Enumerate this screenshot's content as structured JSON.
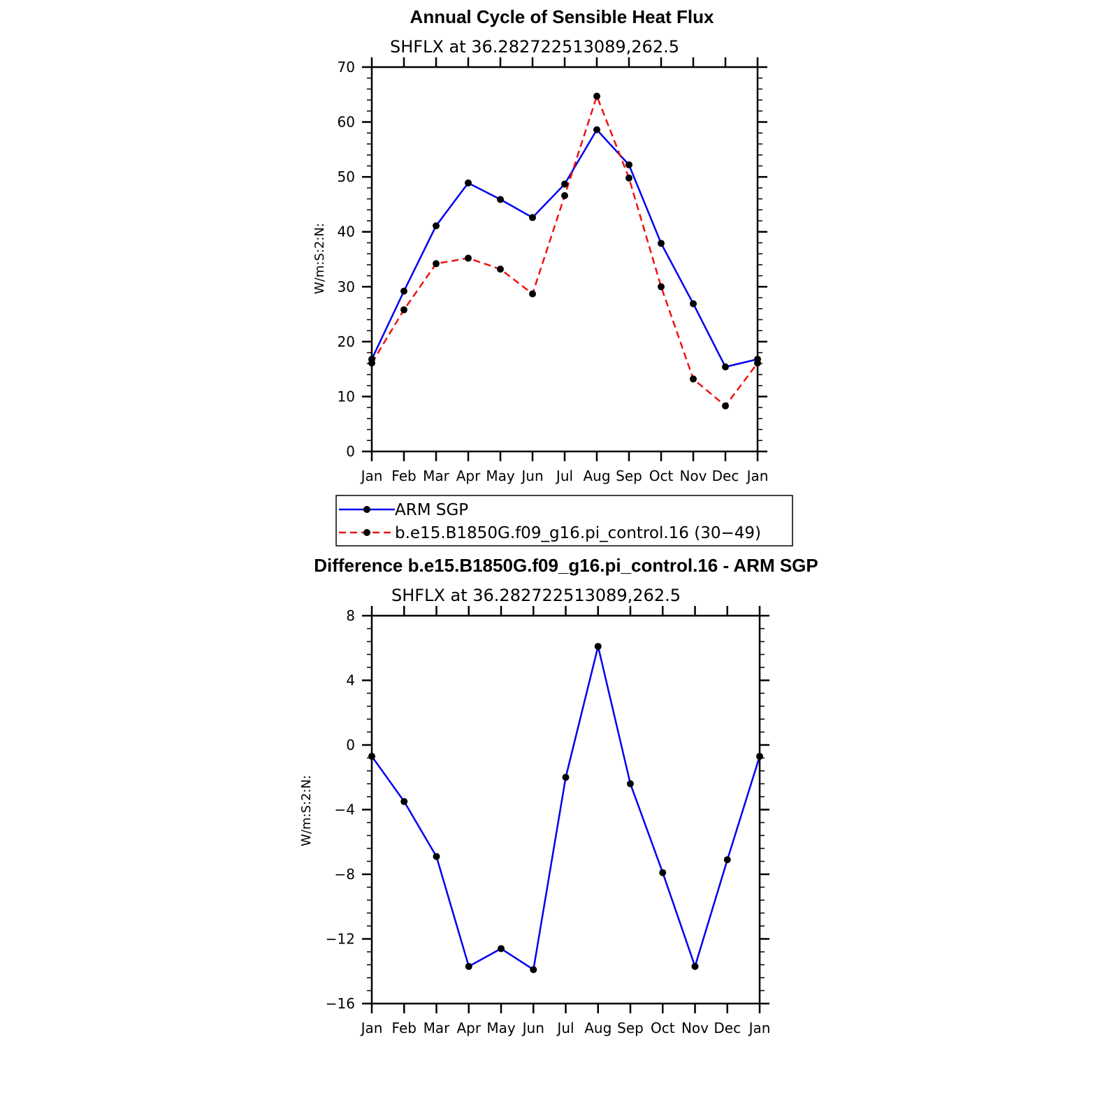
{
  "chart_data": [
    {
      "type": "line",
      "title": "Annual Cycle of Sensible Heat Flux",
      "subtitle": "SHFLX at 36.282722513089,262.5",
      "ylabel": "W/m:S:2:N:",
      "ylim": [
        0,
        70
      ],
      "yticks": [
        "0",
        "10",
        "20",
        "30",
        "40",
        "50",
        "60",
        "70"
      ],
      "categories": [
        "Jan",
        "Feb",
        "Mar",
        "Apr",
        "May",
        "Jun",
        "Jul",
        "Aug",
        "Sep",
        "Oct",
        "Nov",
        "Dec",
        "Jan"
      ],
      "series": [
        {
          "name": "ARM SGP",
          "color": "#0000ee",
          "dash": "solid",
          "values": [
            16.8,
            29.2,
            41.1,
            48.9,
            45.9,
            42.6,
            48.7,
            58.6,
            52.2,
            37.9,
            26.9,
            15.4,
            16.8
          ]
        },
        {
          "name": "b.e15.B1850G.f09_g16.pi_control.16 (30−49)",
          "color": "#ee1111",
          "dash": "dashed",
          "values": [
            16.1,
            25.8,
            34.2,
            35.2,
            33.2,
            28.7,
            46.6,
            64.7,
            49.8,
            30.0,
            13.2,
            8.3,
            16.1
          ]
        }
      ],
      "legend": "below"
    },
    {
      "type": "line",
      "title": "Difference b.e15.B1850G.f09_g16.pi_control.16 - ARM SGP",
      "subtitle": "SHFLX at 36.282722513089,262.5",
      "ylabel": "W/m:S:2:N:",
      "ylim": [
        -16,
        8
      ],
      "yticks": [
        "−16",
        "−12",
        "−8",
        "−4",
        "0",
        "4",
        "8"
      ],
      "categories": [
        "Jan",
        "Feb",
        "Mar",
        "Apr",
        "May",
        "Jun",
        "Jul",
        "Aug",
        "Sep",
        "Oct",
        "Nov",
        "Dec",
        "Jan"
      ],
      "series": [
        {
          "color": "#0000ee",
          "dash": "solid",
          "values": [
            -0.7,
            -3.5,
            -6.9,
            -13.7,
            -12.6,
            -13.9,
            -2.0,
            6.1,
            -2.4,
            -7.9,
            -13.7,
            -7.1,
            -0.7
          ]
        }
      ]
    }
  ]
}
